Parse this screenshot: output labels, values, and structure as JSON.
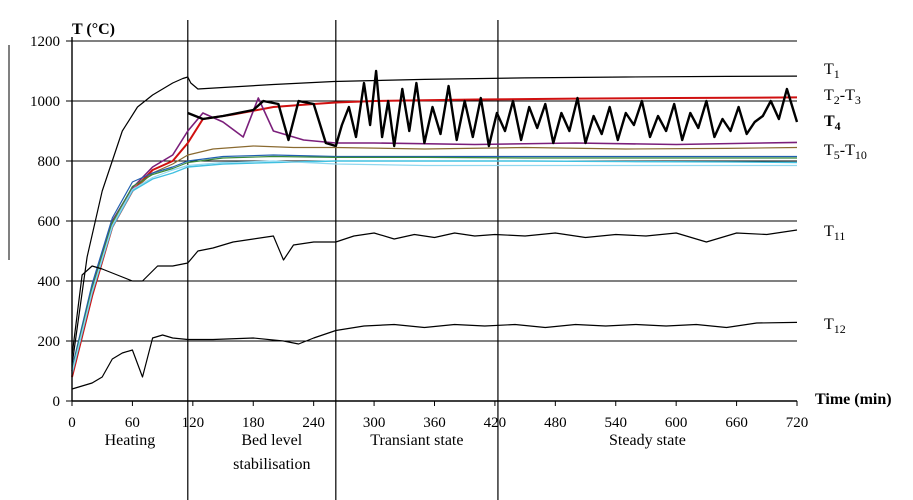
{
  "chart_data": {
    "type": "line",
    "ylabel": "T (°C)",
    "xlabel": "Time (min)",
    "xlim": [
      0,
      720
    ],
    "ylim": [
      0,
      1200
    ],
    "x_ticks": [
      0,
      60,
      120,
      180,
      240,
      300,
      360,
      420,
      480,
      540,
      600,
      660,
      720
    ],
    "y_ticks": [
      0,
      200,
      400,
      600,
      800,
      1000,
      1200
    ],
    "grid": "horizontal",
    "phase_boundaries": [
      115,
      262,
      423
    ],
    "phases": [
      {
        "name": "Heating",
        "start": 0,
        "end": 115
      },
      {
        "name": "Bed level stabilisation",
        "line1": "Bed level",
        "line2": "stabilisation",
        "start": 115,
        "end": 262
      },
      {
        "name": "Transiant state",
        "start": 262,
        "end": 423
      },
      {
        "name": "Steady state",
        "start": 423,
        "end": 720
      }
    ],
    "series": [
      {
        "name": "T1",
        "label_main": "T",
        "label_sub": "1",
        "color": "#000000",
        "width": 1.2,
        "x": [
          0,
          15,
          30,
          50,
          65,
          80,
          100,
          110,
          115,
          118,
          125,
          150,
          200,
          260,
          350,
          450,
          550,
          650,
          720
        ],
        "y": [
          120,
          480,
          700,
          900,
          980,
          1020,
          1060,
          1075,
          1080,
          1060,
          1040,
          1045,
          1055,
          1065,
          1072,
          1077,
          1080,
          1082,
          1083
        ]
      },
      {
        "name": "T2-T3",
        "label_main": "T",
        "label_sub": "2",
        "label_mid": "-T",
        "label_sub2": "3",
        "color": "#d01010",
        "width": 2,
        "x": [
          0,
          20,
          40,
          60,
          80,
          100,
          115,
          130,
          160,
          200,
          240,
          262,
          300,
          400,
          500,
          600,
          720
        ],
        "y": [
          80,
          350,
          580,
          700,
          770,
          800,
          860,
          940,
          955,
          980,
          990,
          995,
          1000,
          1005,
          1008,
          1010,
          1012
        ]
      },
      {
        "name": "T4",
        "label_main": "T",
        "label_sub": "4",
        "color": "#000000",
        "width": 2.4,
        "bold": true,
        "x": [
          115,
          130,
          150,
          165,
          180,
          190,
          205,
          215,
          225,
          240,
          252,
          262,
          268,
          275,
          282,
          290,
          296,
          302,
          308,
          314,
          320,
          328,
          335,
          342,
          350,
          358,
          366,
          374,
          382,
          390,
          398,
          406,
          414,
          422,
          430,
          438,
          446,
          454,
          462,
          470,
          478,
          486,
          494,
          502,
          510,
          518,
          526,
          534,
          542,
          550,
          558,
          566,
          574,
          582,
          590,
          598,
          606,
          614,
          622,
          630,
          638,
          646,
          654,
          662,
          670,
          678,
          686,
          694,
          702,
          710,
          720
        ],
        "y": [
          960,
          940,
          950,
          960,
          970,
          1000,
          990,
          870,
          1000,
          990,
          860,
          850,
          920,
          980,
          880,
          1060,
          920,
          1100,
          880,
          1000,
          850,
          1040,
          900,
          1060,
          860,
          980,
          890,
          1050,
          870,
          1000,
          880,
          1010,
          850,
          960,
          900,
          1000,
          870,
          980,
          910,
          990,
          860,
          960,
          900,
          1010,
          860,
          950,
          890,
          980,
          870,
          960,
          920,
          1000,
          880,
          950,
          900,
          990,
          870,
          960,
          910,
          1000,
          880,
          940,
          900,
          980,
          890,
          930,
          950,
          1000,
          940,
          1040,
          930
        ]
      },
      {
        "name": "T5",
        "color": "#7b1f7b",
        "width": 1.6,
        "x": [
          0,
          20,
          40,
          60,
          80,
          100,
          115,
          130,
          150,
          170,
          185,
          200,
          230,
          262,
          300,
          400,
          500,
          600,
          720
        ],
        "y": [
          100,
          380,
          600,
          710,
          780,
          820,
          900,
          960,
          930,
          880,
          1010,
          900,
          870,
          860,
          860,
          855,
          860,
          855,
          862
        ]
      },
      {
        "name": "T6",
        "color": "#8a6a30",
        "width": 1.2,
        "x": [
          0,
          20,
          40,
          60,
          80,
          100,
          115,
          140,
          180,
          220,
          262,
          350,
          450,
          550,
          650,
          720
        ],
        "y": [
          100,
          370,
          590,
          700,
          760,
          790,
          820,
          840,
          850,
          845,
          845,
          840,
          845,
          840,
          842,
          845
        ]
      },
      {
        "name": "T7",
        "color": "#2060b0",
        "width": 1.2,
        "x": [
          0,
          20,
          40,
          60,
          80,
          100,
          115,
          150,
          200,
          262,
          350,
          450,
          550,
          650,
          720
        ],
        "y": [
          110,
          390,
          610,
          730,
          760,
          780,
          800,
          815,
          820,
          815,
          815,
          815,
          815,
          815,
          815
        ]
      },
      {
        "name": "T8",
        "color": "#40c0e0",
        "width": 1.4,
        "x": [
          0,
          20,
          40,
          60,
          80,
          100,
          115,
          150,
          200,
          262,
          350,
          450,
          550,
          650,
          720
        ],
        "y": [
          90,
          360,
          580,
          700,
          740,
          760,
          780,
          790,
          795,
          800,
          800,
          800,
          798,
          797,
          795
        ]
      },
      {
        "name": "T9",
        "color": "#3a8a3a",
        "width": 1.2,
        "x": [
          0,
          20,
          40,
          60,
          80,
          100,
          115,
          150,
          200,
          262,
          350,
          450,
          550,
          650,
          720
        ],
        "y": [
          100,
          375,
          595,
          715,
          755,
          775,
          795,
          810,
          815,
          812,
          812,
          810,
          810,
          810,
          810
        ]
      },
      {
        "name": "T10",
        "color": "#90d8f0",
        "width": 1.2,
        "x": [
          0,
          20,
          40,
          60,
          80,
          100,
          115,
          150,
          200,
          262,
          350,
          450,
          550,
          650,
          720
        ],
        "y": [
          95,
          365,
          585,
          705,
          745,
          770,
          785,
          795,
          800,
          790,
          785,
          785,
          785,
          785,
          785
        ]
      },
      {
        "name": "T11",
        "label_main": "T",
        "label_sub": "11",
        "color": "#000000",
        "width": 1.2,
        "x": [
          0,
          10,
          20,
          30,
          45,
          60,
          70,
          85,
          100,
          115,
          125,
          140,
          160,
          180,
          200,
          210,
          220,
          240,
          262,
          280,
          300,
          320,
          340,
          360,
          380,
          400,
          420,
          450,
          480,
          510,
          540,
          570,
          600,
          630,
          660,
          690,
          720
        ],
        "y": [
          150,
          420,
          450,
          440,
          420,
          400,
          400,
          450,
          450,
          460,
          500,
          510,
          530,
          540,
          550,
          470,
          520,
          530,
          530,
          550,
          560,
          540,
          555,
          545,
          560,
          550,
          555,
          550,
          560,
          545,
          555,
          550,
          560,
          530,
          560,
          555,
          570
        ]
      },
      {
        "name": "T12",
        "label_main": "T",
        "label_sub": "12",
        "color": "#000000",
        "width": 1.2,
        "x": [
          0,
          20,
          30,
          40,
          50,
          60,
          70,
          80,
          90,
          100,
          115,
          140,
          180,
          210,
          225,
          240,
          262,
          290,
          320,
          350,
          380,
          410,
          440,
          470,
          500,
          530,
          560,
          590,
          620,
          650,
          680,
          720
        ],
        "y": [
          40,
          60,
          80,
          140,
          160,
          170,
          80,
          210,
          220,
          210,
          205,
          205,
          210,
          200,
          190,
          210,
          235,
          250,
          255,
          245,
          255,
          250,
          255,
          245,
          255,
          250,
          255,
          250,
          255,
          245,
          260,
          262
        ]
      }
    ]
  }
}
